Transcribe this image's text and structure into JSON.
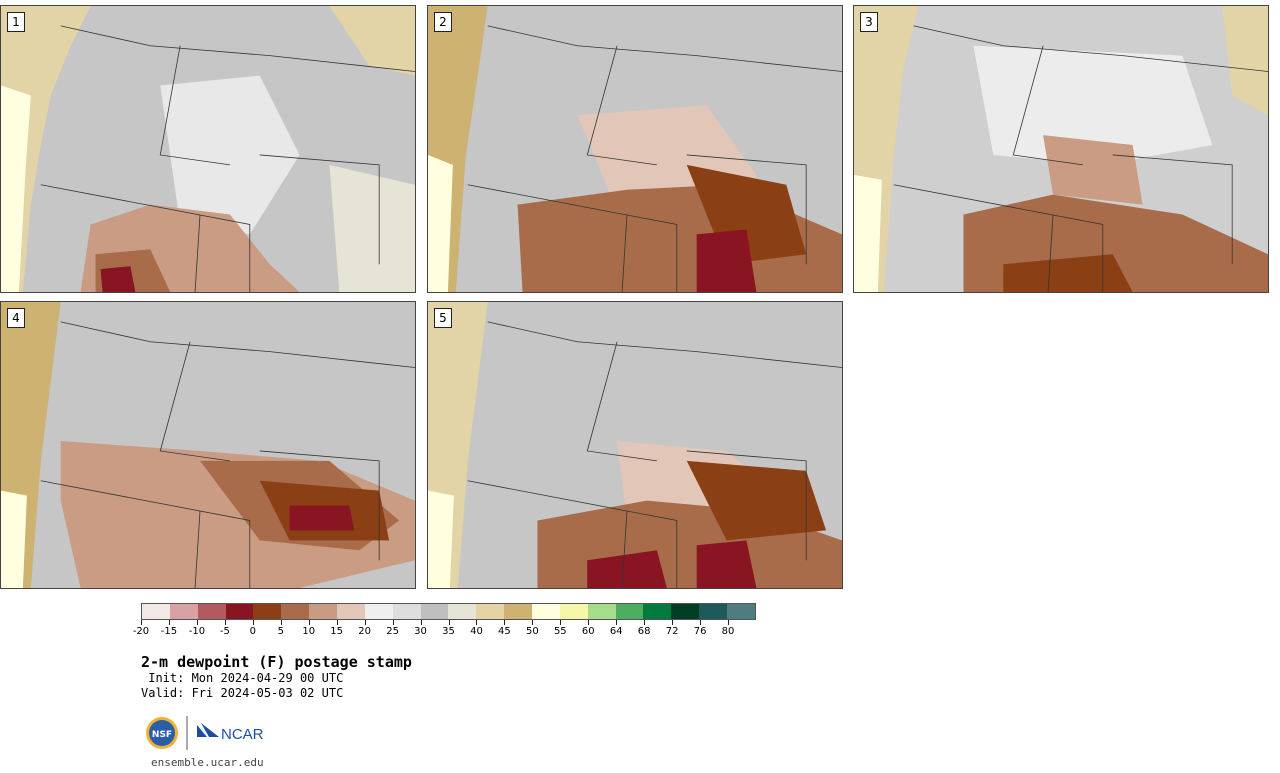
{
  "panels": [
    {
      "label": "1"
    },
    {
      "label": "2"
    },
    {
      "label": "3"
    },
    {
      "label": "4"
    },
    {
      "label": "5"
    }
  ],
  "colorbar": {
    "colors": [
      "#f2e9e7",
      "#d8a2a4",
      "#b25a60",
      "#8a1522",
      "#8a3f14",
      "#a86c4b",
      "#c89b83",
      "#e2c6b7",
      "#efefef",
      "#dedede",
      "#bfbfbf",
      "#e6e4d4",
      "#e3d3a5",
      "#cdb271",
      "#ffffe0",
      "#f7f7a9",
      "#a6dd8a",
      "#4dae62",
      "#007a3d",
      "#003d22",
      "#1e5a5a",
      "#4f7c7f"
    ],
    "ticks": [
      "-20",
      "-15",
      "-10",
      "-5",
      "0",
      "5",
      "10",
      "15",
      "20",
      "25",
      "30",
      "35",
      "40",
      "45",
      "50",
      "55",
      "60",
      "64",
      "68",
      "72",
      "76",
      "80"
    ]
  },
  "title": "2-m dewpoint (F) postage stamp",
  "init": " Init: Mon 2024-04-29 00 UTC",
  "valid": "Valid: Fri 2024-05-03 02 UTC",
  "logo": {
    "left_text": "NSF",
    "right_text": "NCAR"
  },
  "site": "ensemble.ucar.edu"
}
